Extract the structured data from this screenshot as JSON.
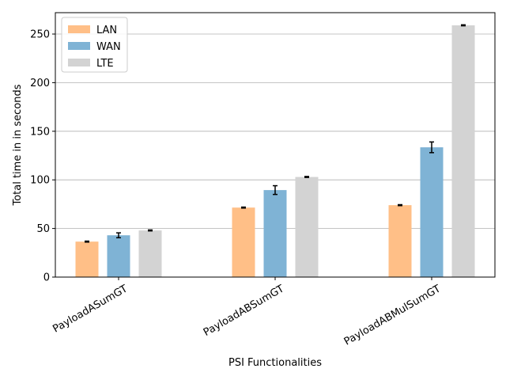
{
  "chart_data": {
    "type": "bar",
    "categories": [
      "PayloadASumGT",
      "PayloadABSumGT",
      "PayloadABMulSumGT"
    ],
    "series": [
      {
        "name": "LAN",
        "values": [
          36.5,
          71.5,
          74
        ],
        "errors": [
          0.5,
          0.5,
          0.5
        ],
        "color": "#ffbf87"
      },
      {
        "name": "WAN",
        "values": [
          43,
          89.5,
          133.5
        ],
        "errors": [
          2.5,
          4.5,
          5.5
        ],
        "color": "#7fb3d5"
      },
      {
        "name": "LTE",
        "values": [
          48,
          103,
          259
        ],
        "errors": [
          0.5,
          0.5,
          0.5
        ],
        "color": "#d3d3d3"
      }
    ],
    "xlabel": "PSI Functionalities",
    "ylabel": "Total time in in seconds",
    "ylim": [
      0,
      272
    ],
    "yticks": [
      0,
      50,
      100,
      150,
      200,
      250
    ],
    "grid": "y",
    "legend_position": "top-left"
  }
}
